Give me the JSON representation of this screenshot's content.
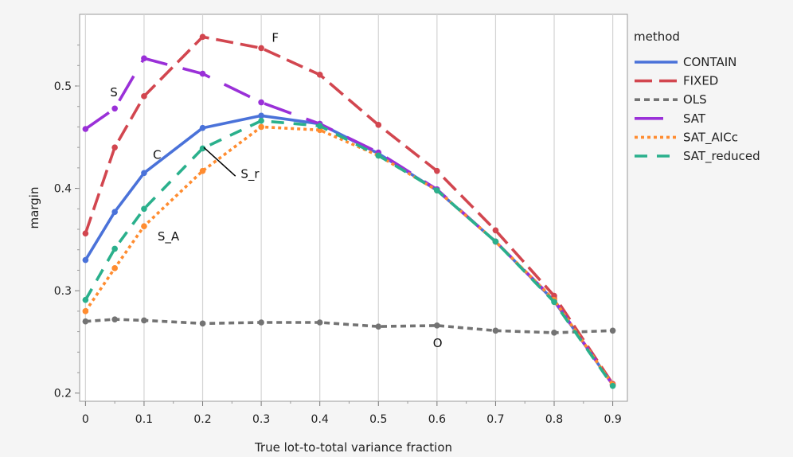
{
  "chart_data": {
    "type": "line",
    "xlabel": "True lot-to-total variance fraction",
    "ylabel": "margin",
    "xlim": [
      -0.01,
      0.925
    ],
    "ylim": [
      0.192,
      0.57
    ],
    "x_ticks": [
      0,
      0.1,
      0.2,
      0.3,
      0.4,
      0.5,
      0.6,
      0.7,
      0.8,
      0.9
    ],
    "x_tick_labels": [
      "0",
      "0.1",
      "0.2",
      "0.3",
      "0.4",
      "0.5",
      "0.6",
      "0.7",
      "0.8",
      "0.9"
    ],
    "y_ticks": [
      0.2,
      0.3,
      0.4,
      0.5
    ],
    "y_tick_labels": [
      "0.2",
      "0.3",
      "0.4",
      "0.5"
    ],
    "grid": "vertical",
    "legend": {
      "title": "method",
      "position": "right"
    },
    "series": [
      {
        "name": "CONTAIN",
        "color": "#4a72d9",
        "dash": "solid",
        "x": [
          0,
          0.05,
          0.1,
          0.2,
          0.3,
          0.4,
          0.5,
          0.6,
          0.7,
          0.8,
          0.9
        ],
        "y": [
          0.33,
          0.377,
          0.415,
          0.459,
          0.471,
          0.463,
          0.434,
          0.398,
          0.348,
          0.29,
          0.208
        ]
      },
      {
        "name": "FIXED",
        "color": "#d2464f",
        "dash": "longdash",
        "x": [
          0,
          0.05,
          0.1,
          0.2,
          0.3,
          0.4,
          0.5,
          0.6,
          0.7,
          0.8,
          0.9
        ],
        "y": [
          0.356,
          0.44,
          0.49,
          0.548,
          0.537,
          0.511,
          0.462,
          0.417,
          0.359,
          0.295,
          0.209
        ]
      },
      {
        "name": "OLS",
        "color": "#737373",
        "dash": "shortdash",
        "x": [
          0,
          0.05,
          0.1,
          0.2,
          0.3,
          0.4,
          0.5,
          0.6,
          0.7,
          0.8,
          0.9
        ],
        "y": [
          0.27,
          0.272,
          0.271,
          0.268,
          0.269,
          0.269,
          0.265,
          0.266,
          0.261,
          0.259,
          0.261
        ]
      },
      {
        "name": "SAT",
        "color": "#9a30d8",
        "dash": "longgap",
        "x": [
          0,
          0.05,
          0.1,
          0.2,
          0.3,
          0.4,
          0.5,
          0.6,
          0.7,
          0.8,
          0.9
        ],
        "y": [
          0.458,
          0.478,
          0.527,
          0.512,
          0.484,
          0.463,
          0.435,
          0.399,
          0.348,
          0.291,
          0.208
        ]
      },
      {
        "name": "SAT_AICc",
        "color": "#ff8c30",
        "dash": "dotted",
        "x": [
          0,
          0.05,
          0.1,
          0.2,
          0.3,
          0.4,
          0.5,
          0.6,
          0.7,
          0.8,
          0.9
        ],
        "y": [
          0.28,
          0.322,
          0.363,
          0.417,
          0.46,
          0.457,
          0.432,
          0.398,
          0.348,
          0.291,
          0.208
        ]
      },
      {
        "name": "SAT_reduced",
        "color": "#2ab08c",
        "dash": "mediumdash",
        "x": [
          0,
          0.05,
          0.1,
          0.2,
          0.3,
          0.4,
          0.5,
          0.6,
          0.7,
          0.8,
          0.9
        ],
        "y": [
          0.291,
          0.341,
          0.38,
          0.439,
          0.466,
          0.461,
          0.432,
          0.398,
          0.348,
          0.289,
          0.207
        ]
      }
    ],
    "annotations": [
      {
        "text": "S",
        "x": 0.042,
        "y": 0.49
      },
      {
        "text": "F",
        "x": 0.318,
        "y": 0.543
      },
      {
        "text": "C",
        "x": 0.115,
        "y": 0.429
      },
      {
        "text": "S_r",
        "x": 0.265,
        "y": 0.41
      },
      {
        "text": "S_A",
        "x": 0.123,
        "y": 0.349
      },
      {
        "text": "O",
        "x": 0.593,
        "y": 0.245
      }
    ],
    "leader_line": {
      "from": [
        0.202,
        0.44
      ],
      "to": [
        0.256,
        0.412
      ]
    }
  }
}
